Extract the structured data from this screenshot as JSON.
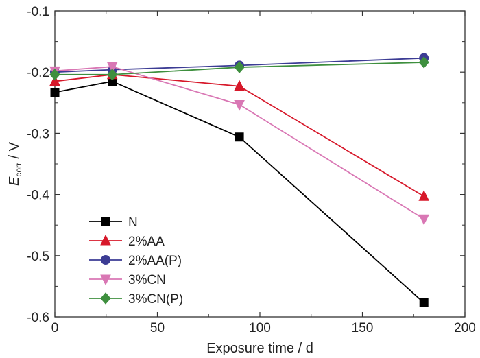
{
  "chart_data": {
    "type": "line",
    "xlabel": "Exposure time / d",
    "ylabel": {
      "main": "E",
      "sub": "corr",
      "rest": " / V"
    },
    "xlim": [
      0,
      200
    ],
    "ylim": [
      -0.6,
      -0.1
    ],
    "xticks": [
      0,
      50,
      100,
      150,
      200
    ],
    "xtick_labels": [
      "0",
      "50",
      "100",
      "150",
      "200"
    ],
    "yticks": [
      -0.6,
      -0.5,
      -0.4,
      -0.3,
      -0.2,
      -0.1
    ],
    "ytick_labels": [
      "-0.6",
      "-0.5",
      "-0.4",
      "-0.3",
      "-0.2",
      "-0.1"
    ],
    "grid": false,
    "legend_position": "bottom-left",
    "x": [
      0,
      28,
      90,
      180
    ],
    "series": [
      {
        "name": "N",
        "color": "#000000",
        "marker": "square",
        "values": [
          -0.233,
          -0.215,
          -0.306,
          -0.577
        ]
      },
      {
        "name": "2%AA",
        "color": "#d7182a",
        "marker": "triangle-up",
        "values": [
          -0.215,
          -0.204,
          -0.223,
          -0.403
        ]
      },
      {
        "name": "2%AA(P)",
        "color": "#3c3c94",
        "marker": "circle",
        "values": [
          -0.2,
          -0.196,
          -0.189,
          -0.177
        ]
      },
      {
        "name": "3%CN",
        "color": "#d977b4",
        "marker": "triangle-down",
        "values": [
          -0.198,
          -0.191,
          -0.253,
          -0.44
        ]
      },
      {
        "name": "3%CN(P)",
        "color": "#3e8f3e",
        "marker": "diamond",
        "values": [
          -0.204,
          -0.204,
          -0.192,
          -0.184
        ]
      }
    ]
  }
}
